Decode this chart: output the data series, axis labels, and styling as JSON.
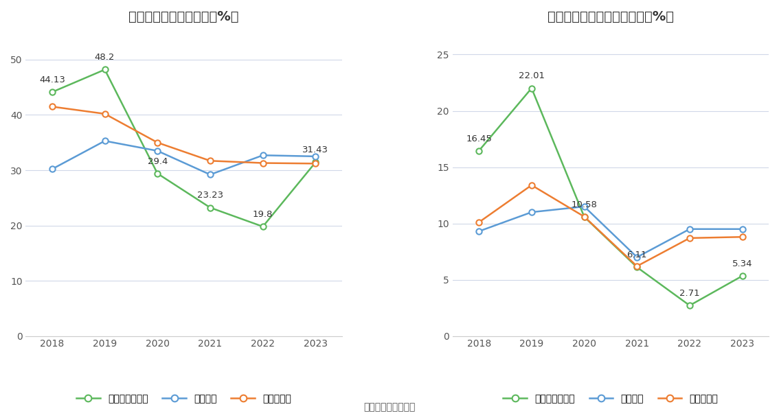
{
  "left_title": "近年来资产负债率情况（%）",
  "right_title": "近年来有息资产负债率情况（%）",
  "source_text": "数据来源：恒生聚源",
  "years": [
    2018,
    2019,
    2020,
    2021,
    2022,
    2023
  ],
  "left": {
    "company": [
      44.13,
      48.2,
      29.4,
      23.23,
      19.8,
      31.43
    ],
    "industry_avg": [
      30.2,
      35.3,
      33.5,
      29.2,
      32.7,
      32.5
    ],
    "industry_median": [
      41.5,
      40.2,
      35.0,
      31.7,
      31.3,
      31.2
    ],
    "company_label": "公司资产负债率",
    "avg_label": "行业均值",
    "median_label": "行业中位数",
    "ylim": [
      0,
      55
    ],
    "yticks": [
      0,
      10,
      20,
      30,
      40,
      50
    ]
  },
  "right": {
    "company": [
      16.45,
      22.01,
      10.58,
      6.11,
      2.71,
      5.34
    ],
    "industry_avg": [
      9.3,
      11.0,
      11.5,
      7.0,
      9.5,
      9.5
    ],
    "industry_median": [
      10.1,
      13.4,
      10.6,
      6.2,
      8.7,
      8.8
    ],
    "company_label": "有息资产负债率",
    "avg_label": "行业均值",
    "median_label": "行业中位数",
    "ylim": [
      0,
      27
    ],
    "yticks": [
      0,
      5,
      10,
      15,
      20,
      25
    ]
  },
  "colors": {
    "company": "#5cb85c",
    "industry_avg": "#5b9bd5",
    "industry_median": "#ed7d31"
  },
  "line_width": 1.8,
  "marker_size": 6,
  "marker": "o",
  "bg_color": "#ffffff",
  "grid_color": "#d0d8e8",
  "title_fontsize": 14,
  "tick_fontsize": 10,
  "annotation_fontsize": 9.5,
  "legend_fontsize": 10
}
